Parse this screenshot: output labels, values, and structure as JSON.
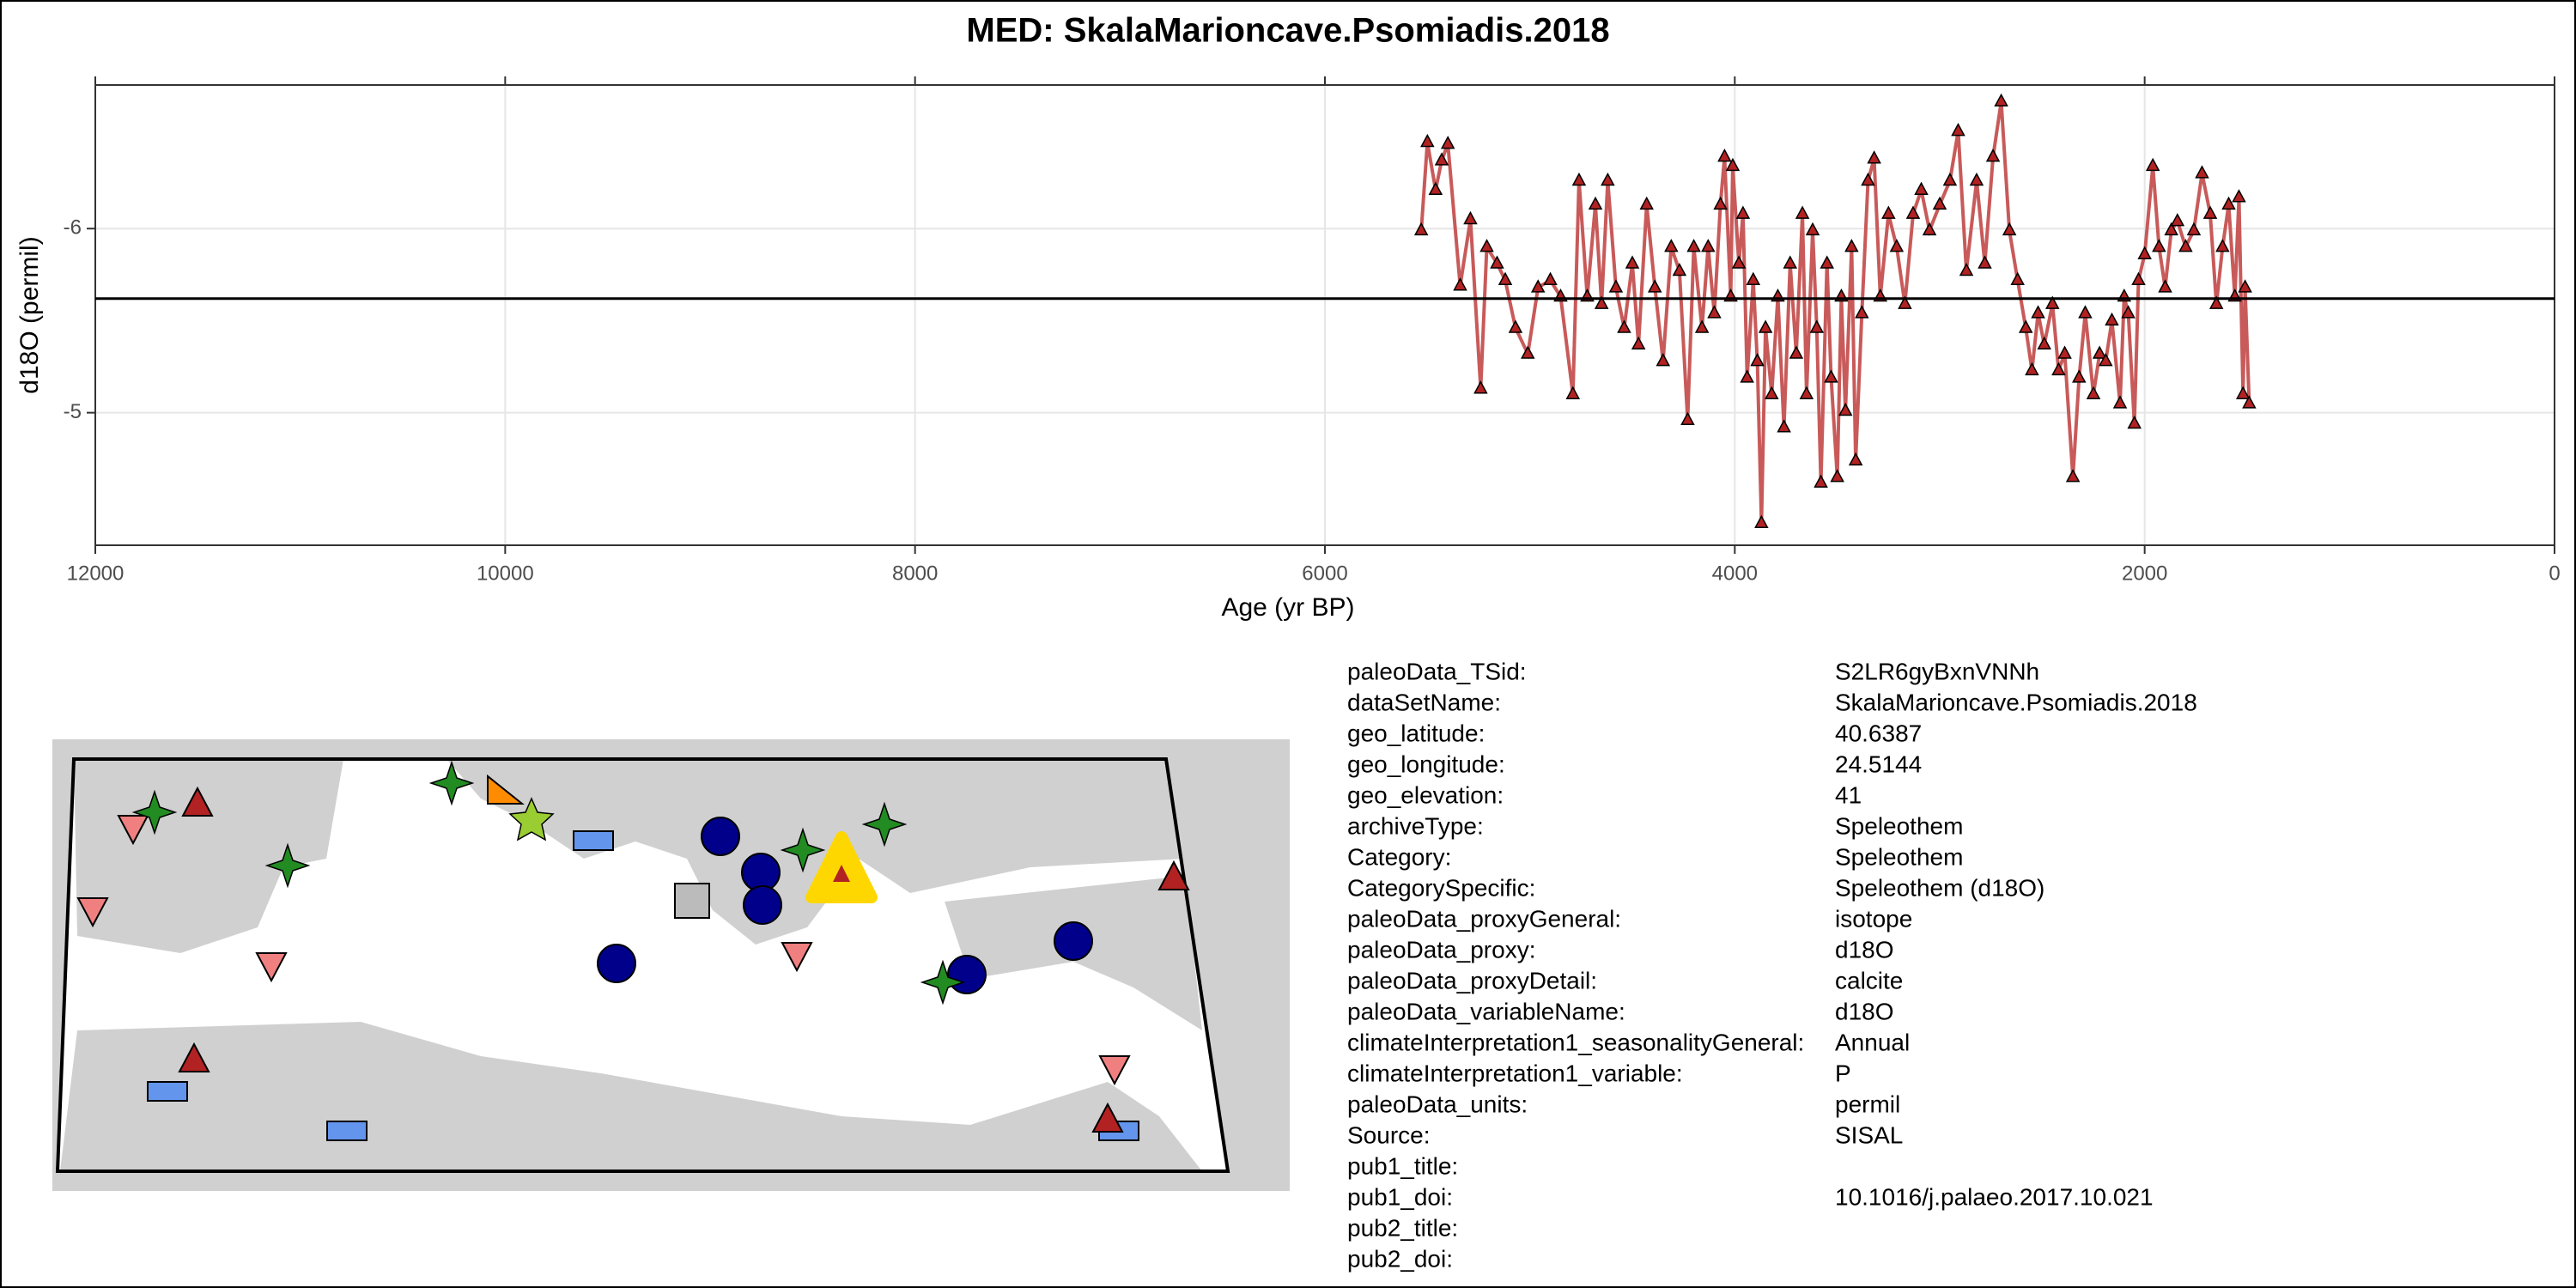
{
  "chart_data": {
    "type": "line",
    "title": "MED: SkalaMarioncave.Psomiadis.2018",
    "x_label": "Age (yr BP)",
    "y_label": "d18O (permil)",
    "xlim": [
      12000,
      0
    ],
    "ylim": [
      -4.28,
      -6.78
    ],
    "xticks": [
      12000,
      10000,
      8000,
      6000,
      4000,
      2000,
      0
    ],
    "yticks": [
      -6,
      -5
    ],
    "grid": true,
    "reference_line": -5.62,
    "series": [
      {
        "color": "#c85a5a",
        "marker_color": "#b22222",
        "x": [
          5530,
          5500,
          5460,
          5430,
          5400,
          5340,
          5290,
          5240,
          5210,
          5160,
          5120,
          5070,
          5010,
          4960,
          4900,
          4850,
          4790,
          4760,
          4720,
          4680,
          4650,
          4620,
          4580,
          4540,
          4500,
          4470,
          4430,
          4390,
          4350,
          4310,
          4270,
          4230,
          4200,
          4160,
          4130,
          4100,
          4070,
          4050,
          4020,
          4010,
          3980,
          3960,
          3940,
          3910,
          3890,
          3870,
          3850,
          3820,
          3790,
          3760,
          3730,
          3700,
          3670,
          3650,
          3620,
          3600,
          3580,
          3550,
          3530,
          3500,
          3480,
          3460,
          3430,
          3410,
          3380,
          3350,
          3320,
          3290,
          3250,
          3210,
          3170,
          3130,
          3090,
          3050,
          3000,
          2950,
          2910,
          2870,
          2820,
          2780,
          2740,
          2700,
          2660,
          2620,
          2580,
          2550,
          2520,
          2490,
          2450,
          2420,
          2390,
          2350,
          2320,
          2290,
          2250,
          2220,
          2190,
          2160,
          2120,
          2100,
          2080,
          2050,
          2030,
          2000,
          1960,
          1930,
          1900,
          1870,
          1840,
          1800,
          1760,
          1720,
          1680,
          1650,
          1620,
          1590,
          1560,
          1540,
          1520,
          1510,
          1490
        ],
        "values": [
          -5.99,
          -6.47,
          -6.21,
          -6.37,
          -6.46,
          -5.69,
          -6.05,
          -5.13,
          -5.9,
          -5.81,
          -5.72,
          -5.46,
          -5.32,
          -5.68,
          -5.72,
          -5.63,
          -5.1,
          -6.26,
          -5.63,
          -6.13,
          -5.59,
          -6.26,
          -5.68,
          -5.46,
          -5.81,
          -5.37,
          -6.13,
          -5.68,
          -5.28,
          -5.9,
          -5.77,
          -4.96,
          -5.9,
          -5.46,
          -5.9,
          -5.54,
          -6.13,
          -6.39,
          -5.63,
          -6.34,
          -5.81,
          -6.08,
          -5.19,
          -5.72,
          -5.28,
          -4.4,
          -5.46,
          -5.1,
          -5.63,
          -4.92,
          -5.81,
          -5.32,
          -6.08,
          -5.1,
          -5.99,
          -5.46,
          -4.62,
          -5.81,
          -5.19,
          -4.65,
          -5.63,
          -5.01,
          -5.9,
          -4.74,
          -5.54,
          -6.26,
          -6.38,
          -5.63,
          -6.08,
          -5.9,
          -5.59,
          -6.08,
          -6.21,
          -5.99,
          -6.13,
          -6.26,
          -6.53,
          -5.77,
          -6.26,
          -5.81,
          -6.39,
          -6.69,
          -5.99,
          -5.72,
          -5.46,
          -5.23,
          -5.54,
          -5.37,
          -5.59,
          -5.23,
          -5.32,
          -4.65,
          -5.19,
          -5.54,
          -5.1,
          -5.32,
          -5.28,
          -5.5,
          -5.05,
          -5.63,
          -5.54,
          -4.94,
          -5.72,
          -5.86,
          -6.34,
          -5.9,
          -5.68,
          -5.99,
          -6.04,
          -5.9,
          -5.99,
          -6.3,
          -6.08,
          -5.59,
          -5.9,
          -6.13,
          -5.63,
          -6.17,
          -5.1,
          -5.68,
          -5.05
        ]
      }
    ]
  },
  "metadata": {
    "rows": [
      [
        "paleoData_TSid:",
        "S2LR6gyBxnVNNh"
      ],
      [
        "dataSetName:",
        "SkalaMarioncave.Psomiadis.2018"
      ],
      [
        "geo_latitude:",
        "40.6387"
      ],
      [
        "geo_longitude:",
        "24.5144"
      ],
      [
        "geo_elevation:",
        "41"
      ],
      [
        "archiveType:",
        "Speleothem"
      ],
      [
        "Category:",
        "Speleothem"
      ],
      [
        "CategorySpecific:",
        "Speleothem (d18O)"
      ],
      [
        "paleoData_proxyGeneral:",
        "isotope"
      ],
      [
        "paleoData_proxy:",
        "d18O"
      ],
      [
        "paleoData_proxyDetail:",
        "calcite"
      ],
      [
        "paleoData_variableName:",
        "d18O"
      ],
      [
        "climateInterpretation1_seasonalityGeneral:",
        "Annual"
      ],
      [
        "climateInterpretation1_variable:",
        "P"
      ],
      [
        "paleoData_units:",
        "permil"
      ],
      [
        "Source:",
        "SISAL"
      ],
      [
        "pub1_title:"
      ],
      [
        "pub1_doi:",
        "10.1016/j.palaeo.2017.10.021"
      ],
      [
        "pub2_title:"
      ],
      [
        "pub2_doi:"
      ]
    ]
  }
}
